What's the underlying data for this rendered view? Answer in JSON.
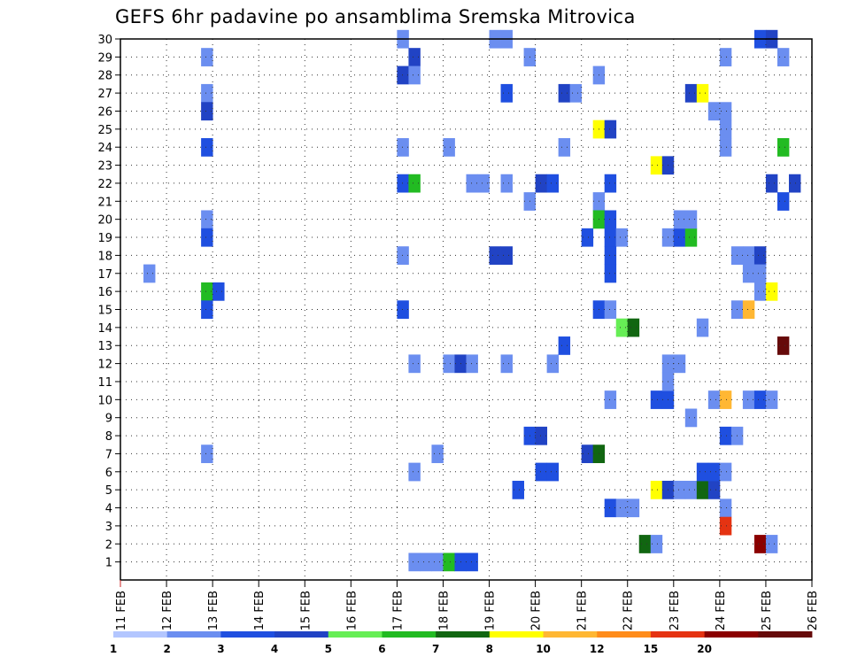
{
  "chart_data": {
    "type": "heatmap",
    "title": "GEFS 6hr padavine po ansamblima Sremska Mitrovica",
    "x_tick_labels": [
      "11 FEB",
      "12 FEB",
      "13 FEB",
      "14 FEB",
      "15 FEB",
      "16 FEB",
      "17 FEB",
      "18 FEB",
      "19 FEB",
      "20 FEB",
      "21 FEB",
      "22 FEB",
      "23 FEB",
      "24 FEB",
      "25 FEB",
      "26 FEB"
    ],
    "x_range_days": [
      0,
      15
    ],
    "x_step_days": 0.25,
    "y_tick_labels": [
      1,
      2,
      3,
      4,
      5,
      6,
      7,
      8,
      9,
      10,
      11,
      12,
      13,
      14,
      15,
      16,
      17,
      18,
      19,
      20,
      21,
      22,
      23,
      24,
      25,
      26,
      27,
      28,
      29,
      30
    ],
    "y_range": [
      0,
      30
    ],
    "grid": true,
    "legend_labels": [
      "1",
      "2",
      "3",
      "4",
      "5",
      "6",
      "7",
      "8",
      "10",
      "12",
      "15",
      "20"
    ],
    "legend_colors": [
      "#b3c6ff",
      "#6b8ef0",
      "#1f4fe0",
      "#2143c4",
      "#66ee55",
      "#22bb22",
      "#116611",
      "#ffff00",
      "#ffb733",
      "#ff8c1a",
      "#e53312",
      "#8b0000",
      "#660a0a"
    ],
    "cells": [
      [
        0.5,
        17,
        1
      ],
      [
        1.75,
        29,
        1
      ],
      [
        1.75,
        27,
        1
      ],
      [
        1.75,
        26,
        3
      ],
      [
        1.75,
        24,
        2
      ],
      [
        1.75,
        20,
        1
      ],
      [
        1.75,
        19,
        2
      ],
      [
        1.75,
        16,
        5
      ],
      [
        2.0,
        16,
        2
      ],
      [
        1.75,
        15,
        2
      ],
      [
        1.75,
        7,
        1
      ],
      [
        6.0,
        30,
        1
      ],
      [
        6.25,
        29,
        3
      ],
      [
        6.0,
        28,
        3
      ],
      [
        6.25,
        28,
        1
      ],
      [
        6.0,
        24,
        1
      ],
      [
        6.0,
        22,
        2
      ],
      [
        6.25,
        22,
        5
      ],
      [
        6.0,
        18,
        1
      ],
      [
        6.0,
        15,
        2
      ],
      [
        6.25,
        12,
        1
      ],
      [
        6.25,
        6,
        1
      ],
      [
        6.25,
        1,
        1
      ],
      [
        6.5,
        1,
        1
      ],
      [
        6.75,
        1,
        1
      ],
      [
        7.0,
        1,
        5
      ],
      [
        7.25,
        1,
        2
      ],
      [
        7.5,
        1,
        2
      ],
      [
        7.0,
        24,
        1
      ],
      [
        7.0,
        12,
        1
      ],
      [
        7.25,
        12,
        3
      ],
      [
        7.5,
        12,
        1
      ],
      [
        6.75,
        7,
        1
      ],
      [
        7.5,
        22,
        1
      ],
      [
        7.75,
        22,
        1
      ],
      [
        8.0,
        18,
        3
      ],
      [
        8.25,
        18,
        3
      ],
      [
        8.25,
        27,
        2
      ],
      [
        8.25,
        22,
        1
      ],
      [
        8.25,
        12,
        1
      ],
      [
        8.0,
        30,
        1
      ],
      [
        8.25,
        30,
        1
      ],
      [
        8.5,
        5,
        2
      ],
      [
        8.75,
        29,
        1
      ],
      [
        8.75,
        21,
        1
      ],
      [
        9.0,
        22,
        3
      ],
      [
        9.25,
        22,
        2
      ],
      [
        8.75,
        8,
        2
      ],
      [
        9.0,
        8,
        3
      ],
      [
        9.0,
        6,
        2
      ],
      [
        9.25,
        6,
        2
      ],
      [
        9.25,
        12,
        1
      ],
      [
        9.5,
        27,
        3
      ],
      [
        9.75,
        27,
        1
      ],
      [
        9.5,
        24,
        1
      ],
      [
        9.5,
        13,
        2
      ],
      [
        10.0,
        19,
        2
      ],
      [
        10.25,
        28,
        1
      ],
      [
        10.25,
        25,
        7
      ],
      [
        10.5,
        25,
        3
      ],
      [
        10.25,
        21,
        1
      ],
      [
        10.25,
        20,
        5
      ],
      [
        10.5,
        20,
        2
      ],
      [
        10.5,
        22,
        2
      ],
      [
        10.5,
        19,
        2
      ],
      [
        10.75,
        19,
        1
      ],
      [
        10.5,
        18,
        2
      ],
      [
        10.5,
        17,
        2
      ],
      [
        10.25,
        15,
        2
      ],
      [
        10.5,
        15,
        1
      ],
      [
        10.75,
        14,
        4
      ],
      [
        11.0,
        14,
        6
      ],
      [
        10.5,
        10,
        1
      ],
      [
        10.0,
        7,
        3
      ],
      [
        10.25,
        7,
        6
      ],
      [
        10.5,
        4,
        2
      ],
      [
        10.75,
        4,
        1
      ],
      [
        11.0,
        4,
        1
      ],
      [
        11.25,
        2,
        6
      ],
      [
        11.5,
        2,
        1
      ],
      [
        11.5,
        23,
        7
      ],
      [
        11.75,
        23,
        3
      ],
      [
        11.75,
        19,
        1
      ],
      [
        12.0,
        19,
        2
      ],
      [
        12.25,
        19,
        5
      ],
      [
        12.0,
        20,
        1
      ],
      [
        12.25,
        20,
        1
      ],
      [
        11.5,
        10,
        2
      ],
      [
        11.75,
        10,
        2
      ],
      [
        11.75,
        12,
        1
      ],
      [
        12.0,
        12,
        1
      ],
      [
        11.75,
        11,
        1
      ],
      [
        11.5,
        5,
        7
      ],
      [
        11.75,
        5,
        3
      ],
      [
        12.0,
        5,
        1
      ],
      [
        12.25,
        5,
        1
      ],
      [
        12.5,
        5,
        6
      ],
      [
        12.75,
        5,
        3
      ],
      [
        12.25,
        9,
        1
      ],
      [
        12.5,
        6,
        2
      ],
      [
        12.75,
        6,
        2
      ],
      [
        13.0,
        6,
        1
      ],
      [
        12.25,
        27,
        3
      ],
      [
        12.5,
        27,
        7
      ],
      [
        12.75,
        26,
        1
      ],
      [
        13.0,
        26,
        1
      ],
      [
        13.0,
        25,
        1
      ],
      [
        13.0,
        24,
        1
      ],
      [
        13.0,
        29,
        1
      ],
      [
        12.5,
        14,
        1
      ],
      [
        12.75,
        10,
        1
      ],
      [
        13.0,
        10,
        8
      ],
      [
        13.0,
        8,
        2
      ],
      [
        13.25,
        8,
        1
      ],
      [
        13.0,
        4,
        1
      ],
      [
        13.0,
        3,
        10
      ],
      [
        13.25,
        18,
        1
      ],
      [
        13.5,
        18,
        1
      ],
      [
        13.75,
        18,
        3
      ],
      [
        13.5,
        17,
        1
      ],
      [
        13.75,
        17,
        1
      ],
      [
        13.75,
        16,
        1
      ],
      [
        14.0,
        16,
        7
      ],
      [
        13.25,
        15,
        1
      ],
      [
        13.5,
        15,
        8
      ],
      [
        13.5,
        10,
        1
      ],
      [
        13.75,
        10,
        2
      ],
      [
        14.0,
        10,
        1
      ],
      [
        13.75,
        2,
        11
      ],
      [
        14.0,
        2,
        1
      ],
      [
        13.75,
        30,
        2
      ],
      [
        14.0,
        30,
        3
      ],
      [
        14.25,
        29,
        1
      ],
      [
        14.25,
        24,
        5
      ],
      [
        14.0,
        22,
        3
      ],
      [
        14.5,
        22,
        3
      ],
      [
        14.25,
        21,
        2
      ],
      [
        14.25,
        13,
        12
      ]
    ]
  }
}
